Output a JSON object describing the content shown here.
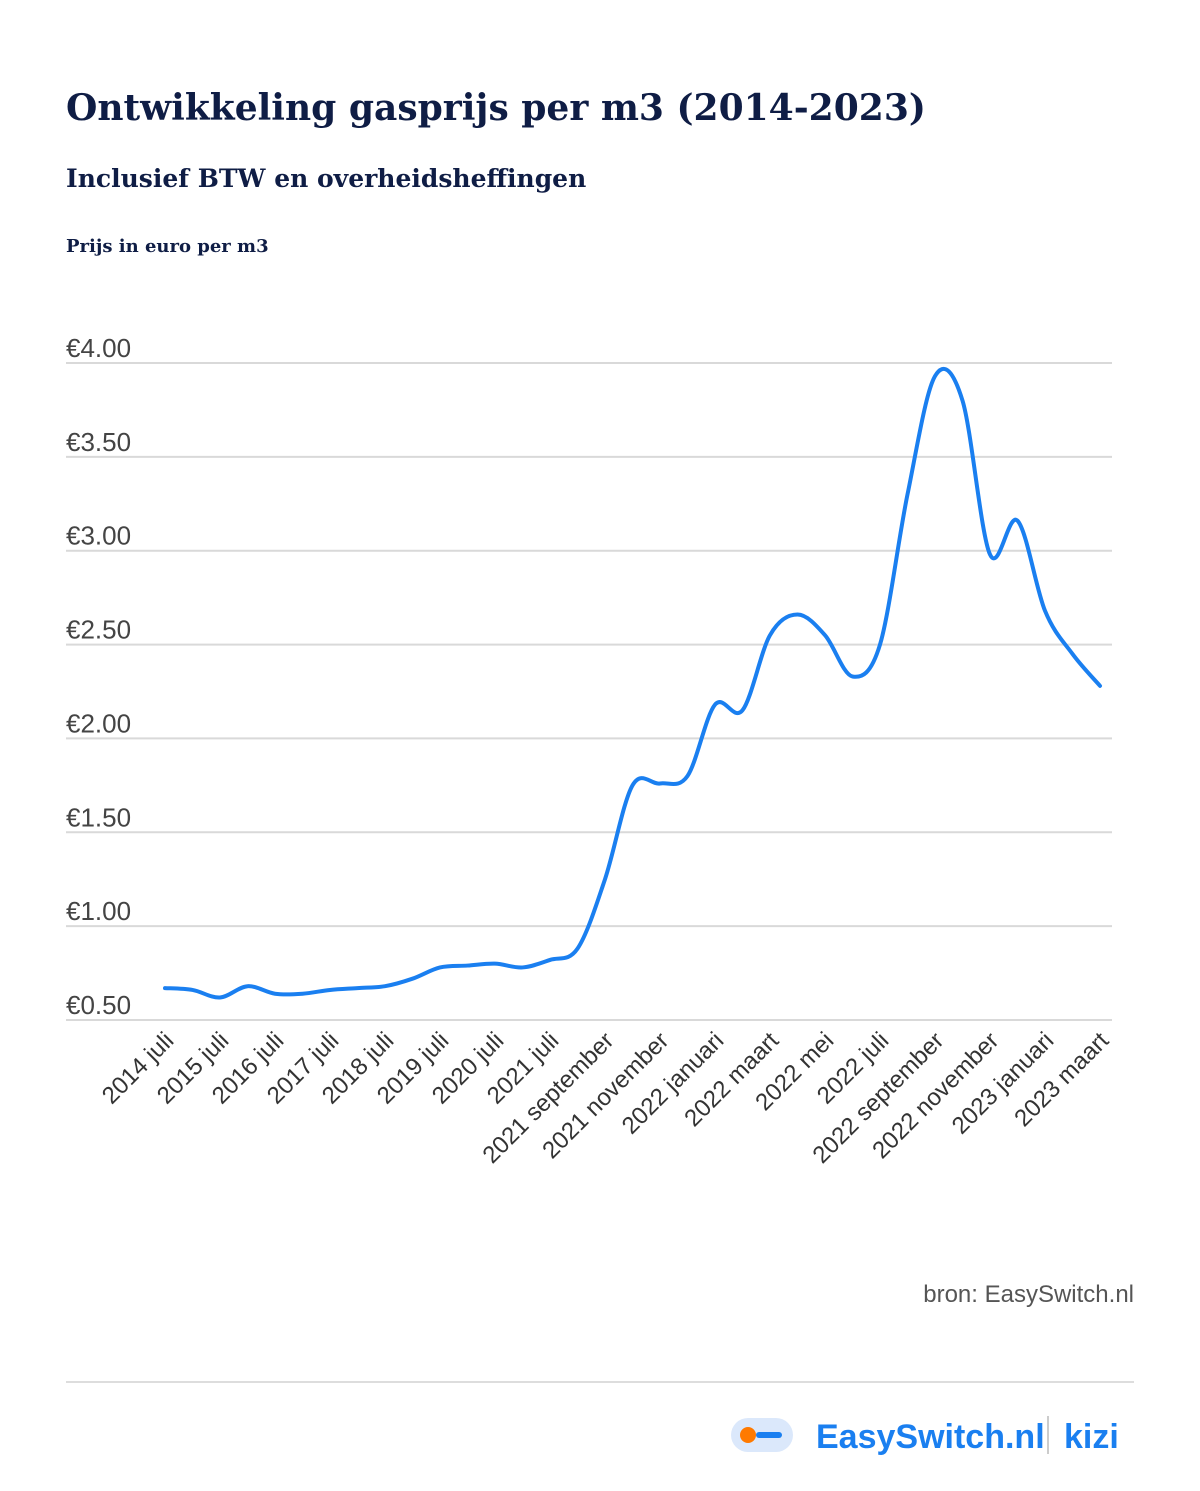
{
  "chart_data": {
    "type": "line",
    "title": "Ontwikkeling gasprijs per m3 (2014-2023)",
    "subtitle": "Inclusief BTW en overheidsheffingen",
    "y_axis_label": "Prijs in euro per m3",
    "categories": [
      "2014 juli",
      null,
      "2015 juli",
      null,
      "2016 juli",
      null,
      "2017 juli",
      null,
      "2018 juli",
      null,
      "2019 juli",
      null,
      "2020 juli",
      null,
      "2021 juli",
      null,
      "2021 september",
      null,
      "2021 november",
      null,
      "2022 januari",
      null,
      "2022 maart",
      null,
      "2022 mei",
      null,
      "2022 juli",
      null,
      "2022 september",
      null,
      "2022 november",
      null,
      "2023 januari",
      null,
      "2023 maart"
    ],
    "series": [
      {
        "name": "Gasprijs",
        "color": "#1a7ff0",
        "values": [
          0.67,
          0.66,
          0.62,
          0.68,
          0.64,
          0.64,
          0.66,
          0.67,
          0.68,
          0.72,
          0.78,
          0.79,
          0.8,
          0.78,
          0.82,
          0.88,
          1.25,
          1.75,
          1.76,
          1.8,
          2.18,
          2.15,
          2.55,
          2.66,
          2.55,
          2.33,
          2.5,
          3.3,
          3.93,
          3.8,
          2.98,
          3.16,
          2.68,
          2.45,
          2.28
        ]
      }
    ],
    "ylim": [
      0.5,
      4.0
    ],
    "yticks": [
      {
        "value": 0.5,
        "label": "€0.50"
      },
      {
        "value": 1.0,
        "label": "€1.00"
      },
      {
        "value": 1.5,
        "label": "€1.50"
      },
      {
        "value": 2.0,
        "label": "€2.00"
      },
      {
        "value": 2.5,
        "label": "€2.50"
      },
      {
        "value": 3.0,
        "label": "€3.00"
      },
      {
        "value": 3.5,
        "label": "€3.50"
      },
      {
        "value": 4.0,
        "label": "€4.00"
      }
    ],
    "grid": true,
    "source": "bron: EasySwitch.nl",
    "logo": "EasySwitch.nl",
    "partner": "kizi"
  }
}
